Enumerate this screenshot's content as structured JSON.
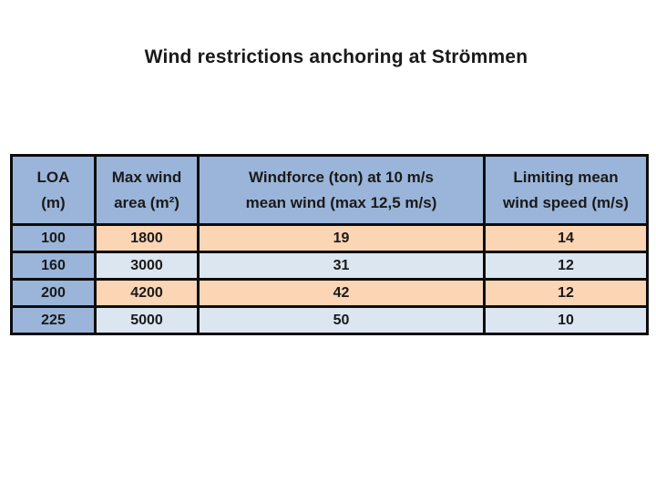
{
  "title": "Wind restrictions anchoring at Strömmen",
  "table": {
    "headers": [
      {
        "line1": "LOA",
        "line2": "(m)"
      },
      {
        "line1": "Max wind",
        "line2": "area (m²)"
      },
      {
        "line1": "Windforce (ton) at 10 m/s",
        "line2": "mean wind (max 12,5 m/s)"
      },
      {
        "line1": "Limiting mean",
        "line2": "wind speed (m/s)"
      }
    ],
    "rows": [
      {
        "loa": "100",
        "max_wind_area": "1800",
        "windforce": "19",
        "limiting_wind_speed": "14"
      },
      {
        "loa": "160",
        "max_wind_area": "3000",
        "windforce": "31",
        "limiting_wind_speed": "12"
      },
      {
        "loa": "200",
        "max_wind_area": "4200",
        "windforce": "42",
        "limiting_wind_speed": "12"
      },
      {
        "loa": "225",
        "max_wind_area": "5000",
        "windforce": "50",
        "limiting_wind_speed": "10"
      }
    ]
  },
  "colors": {
    "header_blue": "#9ab5d9",
    "row_orange": "#fcd5b4",
    "row_light_blue": "#dce6f1",
    "value_red": "#df231e",
    "border_black": "#0d0d0d",
    "text_dark": "#1a1a1a"
  }
}
